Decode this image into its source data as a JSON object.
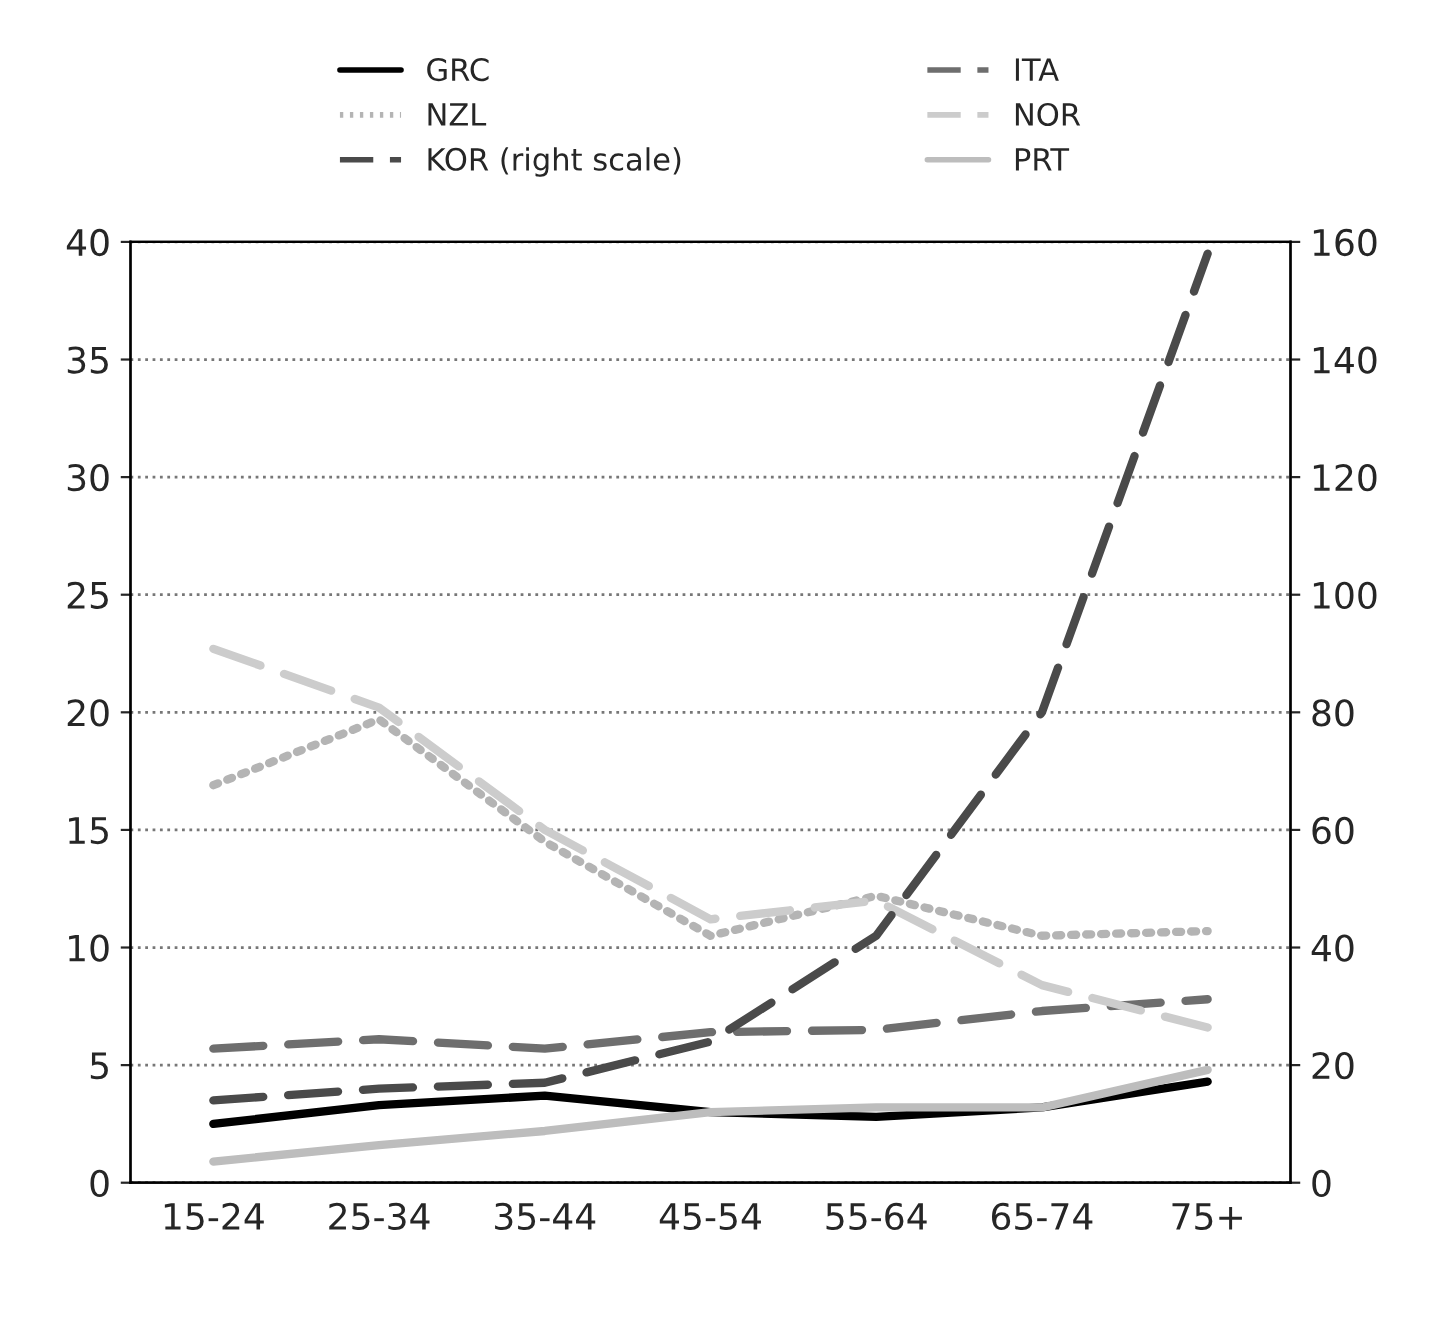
{
  "chart_data": {
    "type": "line",
    "categories": [
      "15-24",
      "25-34",
      "35-44",
      "45-54",
      "55-64",
      "65-74",
      "75+"
    ],
    "series": [
      {
        "name": "GRC",
        "color": "#000000",
        "line_style": "solid",
        "values": [
          2.5,
          3.3,
          3.7,
          3.0,
          2.8,
          3.2,
          4.3
        ]
      },
      {
        "name": "ITA",
        "color": "#6e6e6e",
        "line_style": "dashed",
        "values": [
          5.7,
          6.1,
          5.7,
          6.4,
          6.5,
          7.3,
          7.8
        ]
      },
      {
        "name": "NZL",
        "color": "#b4b4b4",
        "line_style": "dotted",
        "values": [
          16.9,
          19.7,
          14.5,
          10.5,
          12.2,
          10.5,
          10.7
        ]
      },
      {
        "name": "NOR",
        "color": "#cccccc",
        "line_style": "dashed",
        "values": [
          22.7,
          20.2,
          15.0,
          11.2,
          12.0,
          8.4,
          6.6
        ]
      },
      {
        "name": "KOR (right scale)",
        "color": "#4a4a4a",
        "line_style": "dashed",
        "axis": "y2",
        "values": [
          14,
          16,
          17,
          24,
          42,
          80,
          158
        ]
      },
      {
        "name": "PRT",
        "color": "#bdbdbd",
        "line_style": "solid",
        "values": [
          0.9,
          1.6,
          2.2,
          3.0,
          3.2,
          3.2,
          4.8
        ]
      }
    ],
    "ylim": [
      0,
      40
    ],
    "yticks": [
      0,
      5,
      10,
      15,
      20,
      25,
      30,
      35,
      40
    ],
    "y2lim": [
      0,
      160
    ],
    "y2ticks": [
      0,
      20,
      40,
      60,
      80,
      100,
      120,
      140,
      160
    ],
    "grid": "y",
    "legend": "top"
  }
}
